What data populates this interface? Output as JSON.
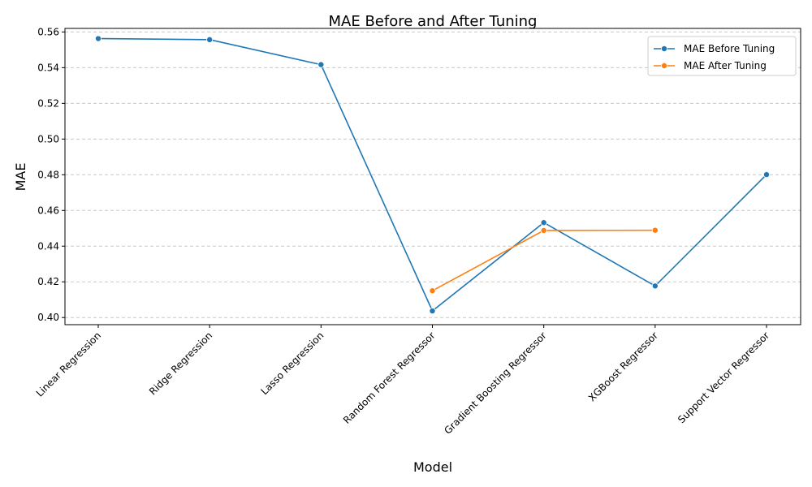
{
  "chart_data": {
    "type": "line",
    "title": "MAE Before and After Tuning",
    "xlabel": "Model",
    "ylabel": "MAE",
    "categories": [
      "Linear Regression",
      "Ridge Regression",
      "Lasso Regression",
      "Random Forest Regressor",
      "Gradient Boosting Regressor",
      "XGBoost Regressor",
      "Support Vector Regressor"
    ],
    "ylim": [
      0.396,
      0.562
    ],
    "yticks": [
      "0.40",
      "0.42",
      "0.44",
      "0.46",
      "0.48",
      "0.50",
      "0.52",
      "0.54",
      "0.56"
    ],
    "grid": "y-dashed",
    "legend_position": "top-right",
    "series": [
      {
        "name": "MAE Before Tuning",
        "color": "#1f77b4",
        "values": [
          0.5563,
          0.5557,
          0.5417,
          0.4037,
          0.4532,
          0.4177,
          0.4801
        ]
      },
      {
        "name": "MAE After Tuning",
        "color": "#ff7f0e",
        "values": [
          null,
          null,
          null,
          0.415,
          0.4488,
          0.4489,
          null
        ]
      }
    ]
  }
}
